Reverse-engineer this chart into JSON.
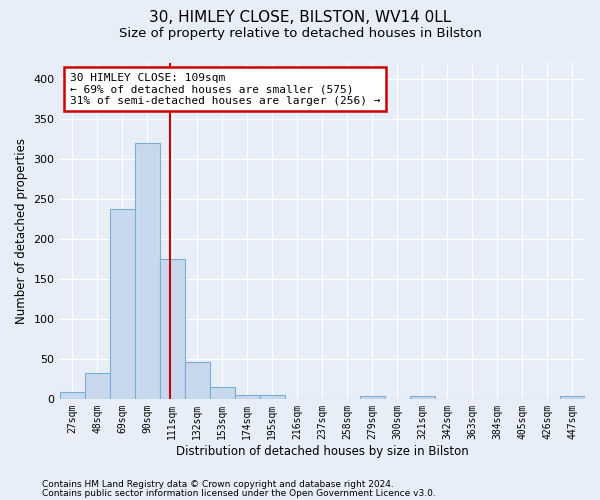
{
  "title1": "30, HIMLEY CLOSE, BILSTON, WV14 0LL",
  "title2": "Size of property relative to detached houses in Bilston",
  "xlabel": "Distribution of detached houses by size in Bilston",
  "ylabel": "Number of detached properties",
  "bar_labels": [
    "27sqm",
    "48sqm",
    "69sqm",
    "90sqm",
    "111sqm",
    "132sqm",
    "153sqm",
    "174sqm",
    "195sqm",
    "216sqm",
    "237sqm",
    "258sqm",
    "279sqm",
    "300sqm",
    "321sqm",
    "342sqm",
    "363sqm",
    "384sqm",
    "405sqm",
    "426sqm",
    "447sqm"
  ],
  "bar_values": [
    8,
    32,
    237,
    320,
    175,
    46,
    15,
    5,
    5,
    0,
    0,
    0,
    4,
    0,
    3,
    0,
    0,
    0,
    0,
    0,
    3
  ],
  "bar_color": "#c8d9ee",
  "bar_edge_color": "#7aadd4",
  "ylim": [
    0,
    420
  ],
  "yticks": [
    0,
    50,
    100,
    150,
    200,
    250,
    300,
    350,
    400
  ],
  "red_line_x": 3.9,
  "annotation_text": "30 HIMLEY CLOSE: 109sqm\n← 69% of detached houses are smaller (575)\n31% of semi-detached houses are larger (256) →",
  "annotation_box_color": "#ffffff",
  "annotation_box_edge_color": "#cc0000",
  "footnote1": "Contains HM Land Registry data © Crown copyright and database right 2024.",
  "footnote2": "Contains public sector information licensed under the Open Government Licence v3.0.",
  "background_color": "#e8eef8",
  "grid_color": "#ffffff",
  "title1_fontsize": 11,
  "title2_fontsize": 9.5,
  "xlabel_fontsize": 8.5,
  "ylabel_fontsize": 8.5,
  "tick_fontsize": 7,
  "annotation_fontsize": 8,
  "footnote_fontsize": 6.5
}
